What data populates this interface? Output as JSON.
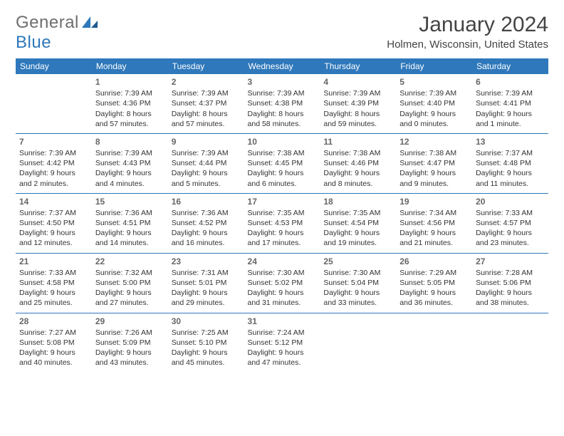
{
  "logo": {
    "line1": "General",
    "line2": "Blue"
  },
  "title": "January 2024",
  "location": "Holmen, Wisconsin, United States",
  "colors": {
    "header_bg": "#2e78bb",
    "header_text": "#ffffff",
    "logo_gray": "#6e6e6e",
    "logo_blue": "#2e78bb",
    "body_text": "#333333",
    "rule": "#2e78bb"
  },
  "weekdays": [
    "Sunday",
    "Monday",
    "Tuesday",
    "Wednesday",
    "Thursday",
    "Friday",
    "Saturday"
  ],
  "weeks": [
    [
      null,
      {
        "d": "1",
        "sr": "Sunrise: 7:39 AM",
        "ss": "Sunset: 4:36 PM",
        "dl1": "Daylight: 8 hours",
        "dl2": "and 57 minutes."
      },
      {
        "d": "2",
        "sr": "Sunrise: 7:39 AM",
        "ss": "Sunset: 4:37 PM",
        "dl1": "Daylight: 8 hours",
        "dl2": "and 57 minutes."
      },
      {
        "d": "3",
        "sr": "Sunrise: 7:39 AM",
        "ss": "Sunset: 4:38 PM",
        "dl1": "Daylight: 8 hours",
        "dl2": "and 58 minutes."
      },
      {
        "d": "4",
        "sr": "Sunrise: 7:39 AM",
        "ss": "Sunset: 4:39 PM",
        "dl1": "Daylight: 8 hours",
        "dl2": "and 59 minutes."
      },
      {
        "d": "5",
        "sr": "Sunrise: 7:39 AM",
        "ss": "Sunset: 4:40 PM",
        "dl1": "Daylight: 9 hours",
        "dl2": "and 0 minutes."
      },
      {
        "d": "6",
        "sr": "Sunrise: 7:39 AM",
        "ss": "Sunset: 4:41 PM",
        "dl1": "Daylight: 9 hours",
        "dl2": "and 1 minute."
      }
    ],
    [
      {
        "d": "7",
        "sr": "Sunrise: 7:39 AM",
        "ss": "Sunset: 4:42 PM",
        "dl1": "Daylight: 9 hours",
        "dl2": "and 2 minutes."
      },
      {
        "d": "8",
        "sr": "Sunrise: 7:39 AM",
        "ss": "Sunset: 4:43 PM",
        "dl1": "Daylight: 9 hours",
        "dl2": "and 4 minutes."
      },
      {
        "d": "9",
        "sr": "Sunrise: 7:39 AM",
        "ss": "Sunset: 4:44 PM",
        "dl1": "Daylight: 9 hours",
        "dl2": "and 5 minutes."
      },
      {
        "d": "10",
        "sr": "Sunrise: 7:38 AM",
        "ss": "Sunset: 4:45 PM",
        "dl1": "Daylight: 9 hours",
        "dl2": "and 6 minutes."
      },
      {
        "d": "11",
        "sr": "Sunrise: 7:38 AM",
        "ss": "Sunset: 4:46 PM",
        "dl1": "Daylight: 9 hours",
        "dl2": "and 8 minutes."
      },
      {
        "d": "12",
        "sr": "Sunrise: 7:38 AM",
        "ss": "Sunset: 4:47 PM",
        "dl1": "Daylight: 9 hours",
        "dl2": "and 9 minutes."
      },
      {
        "d": "13",
        "sr": "Sunrise: 7:37 AM",
        "ss": "Sunset: 4:48 PM",
        "dl1": "Daylight: 9 hours",
        "dl2": "and 11 minutes."
      }
    ],
    [
      {
        "d": "14",
        "sr": "Sunrise: 7:37 AM",
        "ss": "Sunset: 4:50 PM",
        "dl1": "Daylight: 9 hours",
        "dl2": "and 12 minutes."
      },
      {
        "d": "15",
        "sr": "Sunrise: 7:36 AM",
        "ss": "Sunset: 4:51 PM",
        "dl1": "Daylight: 9 hours",
        "dl2": "and 14 minutes."
      },
      {
        "d": "16",
        "sr": "Sunrise: 7:36 AM",
        "ss": "Sunset: 4:52 PM",
        "dl1": "Daylight: 9 hours",
        "dl2": "and 16 minutes."
      },
      {
        "d": "17",
        "sr": "Sunrise: 7:35 AM",
        "ss": "Sunset: 4:53 PM",
        "dl1": "Daylight: 9 hours",
        "dl2": "and 17 minutes."
      },
      {
        "d": "18",
        "sr": "Sunrise: 7:35 AM",
        "ss": "Sunset: 4:54 PM",
        "dl1": "Daylight: 9 hours",
        "dl2": "and 19 minutes."
      },
      {
        "d": "19",
        "sr": "Sunrise: 7:34 AM",
        "ss": "Sunset: 4:56 PM",
        "dl1": "Daylight: 9 hours",
        "dl2": "and 21 minutes."
      },
      {
        "d": "20",
        "sr": "Sunrise: 7:33 AM",
        "ss": "Sunset: 4:57 PM",
        "dl1": "Daylight: 9 hours",
        "dl2": "and 23 minutes."
      }
    ],
    [
      {
        "d": "21",
        "sr": "Sunrise: 7:33 AM",
        "ss": "Sunset: 4:58 PM",
        "dl1": "Daylight: 9 hours",
        "dl2": "and 25 minutes."
      },
      {
        "d": "22",
        "sr": "Sunrise: 7:32 AM",
        "ss": "Sunset: 5:00 PM",
        "dl1": "Daylight: 9 hours",
        "dl2": "and 27 minutes."
      },
      {
        "d": "23",
        "sr": "Sunrise: 7:31 AM",
        "ss": "Sunset: 5:01 PM",
        "dl1": "Daylight: 9 hours",
        "dl2": "and 29 minutes."
      },
      {
        "d": "24",
        "sr": "Sunrise: 7:30 AM",
        "ss": "Sunset: 5:02 PM",
        "dl1": "Daylight: 9 hours",
        "dl2": "and 31 minutes."
      },
      {
        "d": "25",
        "sr": "Sunrise: 7:30 AM",
        "ss": "Sunset: 5:04 PM",
        "dl1": "Daylight: 9 hours",
        "dl2": "and 33 minutes."
      },
      {
        "d": "26",
        "sr": "Sunrise: 7:29 AM",
        "ss": "Sunset: 5:05 PM",
        "dl1": "Daylight: 9 hours",
        "dl2": "and 36 minutes."
      },
      {
        "d": "27",
        "sr": "Sunrise: 7:28 AM",
        "ss": "Sunset: 5:06 PM",
        "dl1": "Daylight: 9 hours",
        "dl2": "and 38 minutes."
      }
    ],
    [
      {
        "d": "28",
        "sr": "Sunrise: 7:27 AM",
        "ss": "Sunset: 5:08 PM",
        "dl1": "Daylight: 9 hours",
        "dl2": "and 40 minutes."
      },
      {
        "d": "29",
        "sr": "Sunrise: 7:26 AM",
        "ss": "Sunset: 5:09 PM",
        "dl1": "Daylight: 9 hours",
        "dl2": "and 43 minutes."
      },
      {
        "d": "30",
        "sr": "Sunrise: 7:25 AM",
        "ss": "Sunset: 5:10 PM",
        "dl1": "Daylight: 9 hours",
        "dl2": "and 45 minutes."
      },
      {
        "d": "31",
        "sr": "Sunrise: 7:24 AM",
        "ss": "Sunset: 5:12 PM",
        "dl1": "Daylight: 9 hours",
        "dl2": "and 47 minutes."
      },
      null,
      null,
      null
    ]
  ]
}
